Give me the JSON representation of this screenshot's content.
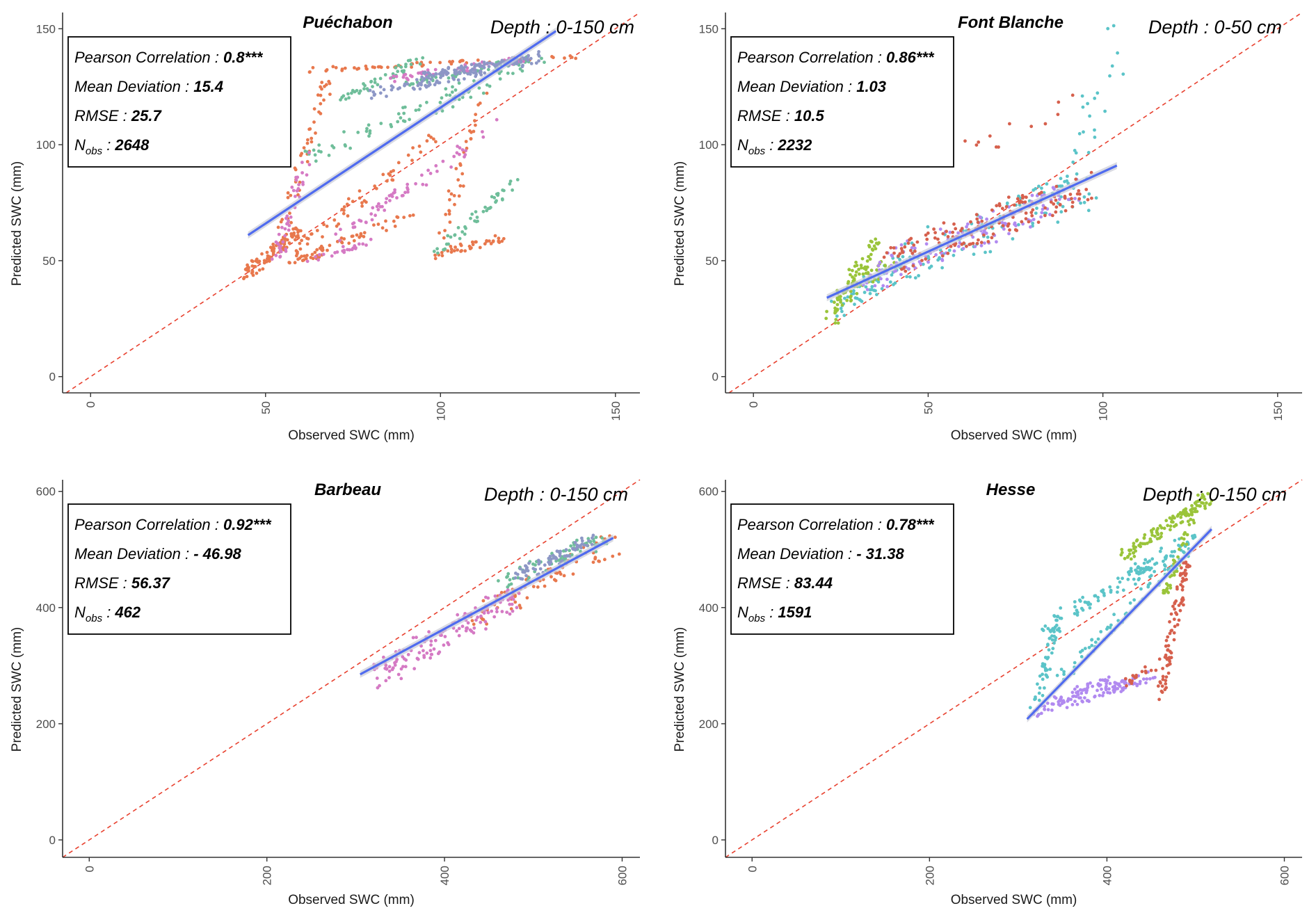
{
  "colors": {
    "identity_line": "#e8412f",
    "fit_line": "#4f6bef",
    "fit_band": "#c9cbd6",
    "axis": "#333333",
    "series": [
      "#e8784d",
      "#6fbe9a",
      "#d57ac4",
      "#8d97c6",
      "#5bc4c8",
      "#9ac43a",
      "#b18af0",
      "#d6604d"
    ]
  },
  "chart_data": [
    {
      "type": "scatter",
      "title": "Puéchabon",
      "subtitle": "Depth : 0-150 cm",
      "xlabel": "Observed SWC (mm)",
      "ylabel": "Predicted SWC (mm)",
      "xlim": [
        -8,
        157
      ],
      "ylim": [
        -7,
        157
      ],
      "xticks": [
        0,
        50,
        100,
        150
      ],
      "yticks": [
        0,
        50,
        100,
        150
      ],
      "grid": false,
      "identity_line": true,
      "stats": {
        "pearson_label": "Pearson Correlation : ",
        "pearson": "0.8***",
        "md_label": "Mean Deviation : ",
        "md": "15.4",
        "rmse_label": "RMSE : ",
        "rmse": "25.7",
        "n_main": "N",
        "n_sub": "obs",
        "n_sep": " : ",
        "n": "2648"
      },
      "fit": {
        "x": [
          45,
          133
        ],
        "y": [
          61,
          149
        ]
      },
      "series": [
        {
          "name": "layer-1",
          "segments": [
            {
              "x": [
                44,
                60
              ],
              "y": [
                44,
                63
              ],
              "n": 90,
              "spread": 2.5
            },
            {
              "x": [
                52,
                68
              ],
              "y": [
                50,
                128
              ],
              "n": 55,
              "spread": 3
            },
            {
              "x": [
                56,
                92
              ],
              "y": [
                48,
                70
              ],
              "n": 55,
              "spread": 2
            },
            {
              "x": [
                58,
                98
              ],
              "y": [
                52,
                103
              ],
              "n": 55,
              "spread": 3
            },
            {
              "x": [
                98,
                118
              ],
              "y": [
                52,
                60
              ],
              "n": 40,
              "spread": 2
            },
            {
              "x": [
                100,
                112
              ],
              "y": [
                58,
                120
              ],
              "n": 35,
              "spread": 3
            },
            {
              "x": [
                60,
                140
              ],
              "y": [
                132,
                138
              ],
              "n": 55,
              "spread": 1
            }
          ]
        },
        {
          "name": "layer-2",
          "segments": [
            {
              "x": [
                62,
                130
              ],
              "y": [
                95,
                137
              ],
              "n": 80,
              "spread": 4
            },
            {
              "x": [
                72,
                95
              ],
              "y": [
                120,
                137
              ],
              "n": 45,
              "spread": 2
            },
            {
              "x": [
                98,
                122
              ],
              "y": [
                52,
                85
              ],
              "n": 45,
              "spread": 2
            },
            {
              "x": [
                88,
                125
              ],
              "y": [
                126,
                137
              ],
              "n": 55,
              "spread": 1.5
            }
          ]
        },
        {
          "name": "layer-3",
          "segments": [
            {
              "x": [
                53,
                62
              ],
              "y": [
                50,
                95
              ],
              "n": 45,
              "spread": 3
            },
            {
              "x": [
                62,
                80
              ],
              "y": [
                50,
                58
              ],
              "n": 25,
              "spread": 1.5
            },
            {
              "x": [
                80,
                118
              ],
              "y": [
                70,
                110
              ],
              "n": 40,
              "spread": 3
            },
            {
              "x": [
                70,
                90
              ],
              "y": [
                60,
                78
              ],
              "n": 20,
              "spread": 2
            },
            {
              "x": [
                85,
                125
              ],
              "y": [
                128,
                137
              ],
              "n": 55,
              "spread": 1.5
            }
          ]
        },
        {
          "name": "layer-4",
          "segments": [
            {
              "x": [
                80,
                130
              ],
              "y": [
                122,
                138
              ],
              "n": 110,
              "spread": 2.5
            },
            {
              "x": [
                95,
                125
              ],
              "y": [
                130,
                137
              ],
              "n": 60,
              "spread": 1.5
            }
          ]
        }
      ]
    },
    {
      "type": "scatter",
      "title": "Font Blanche",
      "subtitle": "Depth : 0-50 cm",
      "xlabel": "Observed SWC (mm)",
      "ylabel": "Predicted SWC (mm)",
      "xlim": [
        -8,
        157
      ],
      "ylim": [
        -7,
        157
      ],
      "xticks": [
        0,
        50,
        100,
        150
      ],
      "yticks": [
        0,
        50,
        100,
        150
      ],
      "grid": false,
      "identity_line": true,
      "stats": {
        "pearson_label": "Pearson Correlation : ",
        "pearson": "0.86***",
        "md_label": "Mean Deviation : ",
        "md": "1.03",
        "rmse_label": "RMSE : ",
        "rmse": "10.5",
        "n_main": "N",
        "n_sub": "obs",
        "n_sep": " : ",
        "n": "2232"
      },
      "fit": {
        "x": [
          21,
          104
        ],
        "y": [
          34,
          91
        ]
      },
      "series": [
        {
          "name": "layer-1",
          "segments": [
            {
              "x": [
                22,
                45
              ],
              "y": [
                27,
                52
              ],
              "n": 60,
              "spread": 5
            },
            {
              "x": [
                40,
                95
              ],
              "y": [
                48,
                80
              ],
              "n": 110,
              "spread": 9
            },
            {
              "x": [
                85,
                105
              ],
              "y": [
                70,
                148
              ],
              "n": 25,
              "spread": 8
            }
          ]
        },
        {
          "name": "layer-2",
          "segments": [
            {
              "x": [
                22,
                35
              ],
              "y": [
                25,
                58
              ],
              "n": 75,
              "spread": 4
            },
            {
              "x": [
                25,
                40
              ],
              "y": [
                35,
                50
              ],
              "n": 35,
              "spread": 3
            }
          ]
        },
        {
          "name": "layer-3",
          "segments": [
            {
              "x": [
                32,
                92
              ],
              "y": [
                42,
                80
              ],
              "n": 130,
              "spread": 7
            }
          ]
        },
        {
          "name": "layer-4",
          "segments": [
            {
              "x": [
                40,
                96
              ],
              "y": [
                50,
                82
              ],
              "n": 150,
              "spread": 7
            },
            {
              "x": [
                60,
                90
              ],
              "y": [
                95,
                120
              ],
              "n": 12,
              "spread": 5
            }
          ]
        }
      ]
    },
    {
      "type": "scatter",
      "title": "Barbeau",
      "subtitle": "Depth : 0-150 cm",
      "xlabel": "Observed SWC (mm)",
      "ylabel": "Predicted SWC (mm)",
      "xlim": [
        -30,
        620
      ],
      "ylim": [
        -30,
        620
      ],
      "xticks": [
        0,
        200,
        400,
        600
      ],
      "yticks": [
        0,
        200,
        400,
        600
      ],
      "grid": false,
      "identity_line": true,
      "stats": {
        "pearson_label": "Pearson Correlation : ",
        "pearson": "0.92***",
        "md_label": "Mean Deviation : ",
        "md": "- 46.98",
        "rmse_label": "RMSE : ",
        "rmse": "56.37",
        "n_main": "N",
        "n_sub": "obs",
        "n_sep": " : ",
        "n": "462"
      },
      "fit": {
        "x": [
          305,
          590
        ],
        "y": [
          285,
          520
        ]
      },
      "series": [
        {
          "name": "layer-1",
          "segments": [
            {
              "x": [
                430,
                590
              ],
              "y": [
                380,
                510
              ],
              "n": 80,
              "spread": 20
            }
          ]
        },
        {
          "name": "layer-2",
          "segments": [
            {
              "x": [
                460,
                580
              ],
              "y": [
                440,
                520
              ],
              "n": 70,
              "spread": 15
            }
          ]
        },
        {
          "name": "layer-3",
          "segments": [
            {
              "x": [
                320,
                480
              ],
              "y": [
                280,
                420
              ],
              "n": 140,
              "spread": 22
            }
          ]
        },
        {
          "name": "layer-4",
          "segments": [
            {
              "x": [
                480,
                570
              ],
              "y": [
                450,
                520
              ],
              "n": 70,
              "spread": 12
            }
          ]
        }
      ]
    },
    {
      "type": "scatter",
      "title": "Hesse",
      "subtitle": "Depth : 0-150 cm",
      "xlabel": "Observed SWC (mm)",
      "ylabel": "Predicted SWC (mm)",
      "xlim": [
        -30,
        620
      ],
      "ylim": [
        -30,
        620
      ],
      "xticks": [
        0,
        200,
        400,
        600
      ],
      "yticks": [
        0,
        200,
        400,
        600
      ],
      "grid": false,
      "identity_line": true,
      "stats": {
        "pearson_label": "Pearson Correlation : ",
        "pearson": "0.78***",
        "md_label": "Mean Deviation : ",
        "md": "- 31.38",
        "rmse_label": "RMSE : ",
        "rmse": "83.44",
        "n_main": "N",
        "n_sub": "obs",
        "n_sep": " : ",
        "n": "1591"
      },
      "fit": {
        "x": [
          310,
          518
        ],
        "y": [
          208,
          535
        ]
      },
      "series": [
        {
          "name": "layer-1",
          "segments": [
            {
              "x": [
                318,
                345
              ],
              "y": [
                220,
                380
              ],
              "n": 60,
              "spread": 10
            },
            {
              "x": [
                330,
                460
              ],
              "y": [
                370,
                480
              ],
              "n": 60,
              "spread": 12
            },
            {
              "x": [
                340,
                500
              ],
              "y": [
                260,
                520
              ],
              "n": 70,
              "spread": 12
            },
            {
              "x": [
                420,
                495
              ],
              "y": [
                450,
                520
              ],
              "n": 40,
              "spread": 10
            }
          ]
        },
        {
          "name": "layer-2",
          "segments": [
            {
              "x": [
                420,
                515
              ],
              "y": [
                490,
                590
              ],
              "n": 120,
              "spread": 12
            },
            {
              "x": [
                465,
                495
              ],
              "y": [
                420,
                550
              ],
              "n": 40,
              "spread": 8
            }
          ]
        },
        {
          "name": "layer-3",
          "segments": [
            {
              "x": [
                320,
                450
              ],
              "y": [
                220,
                280
              ],
              "n": 100,
              "spread": 10
            },
            {
              "x": [
                340,
                400
              ],
              "y": [
                240,
                275
              ],
              "n": 40,
              "spread": 8
            }
          ]
        },
        {
          "name": "layer-4",
          "segments": [
            {
              "x": [
                460,
                490
              ],
              "y": [
                250,
                480
              ],
              "n": 80,
              "spread": 10
            },
            {
              "x": [
                420,
                470
              ],
              "y": [
                270,
                310
              ],
              "n": 25,
              "spread": 8
            }
          ]
        }
      ]
    }
  ]
}
